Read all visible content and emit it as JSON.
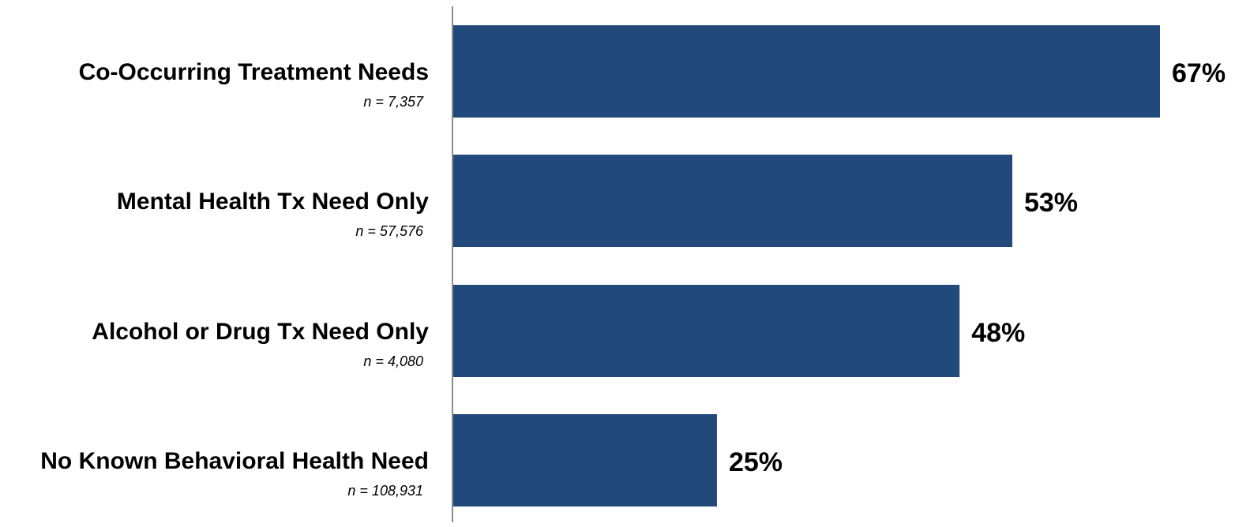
{
  "colors": {
    "bar": "#21497a",
    "axis": "#8c8c8c"
  },
  "chart_data": {
    "type": "bar",
    "orientation": "horizontal",
    "categories": [
      "Co-Occurring Treatment Needs",
      "Mental Health Tx Need Only",
      "Alcohol or Drug Tx Need Only",
      "No Known Behavioral Health Need"
    ],
    "sample_sizes": [
      "n = 7,357",
      "n = 57,576",
      "n = 4,080",
      "n = 108,931"
    ],
    "values": [
      67,
      53,
      48,
      25
    ],
    "value_labels": [
      "67%",
      "53%",
      "48%",
      "25%"
    ],
    "xlim": [
      0,
      67
    ],
    "grid": false,
    "legend": "none"
  }
}
